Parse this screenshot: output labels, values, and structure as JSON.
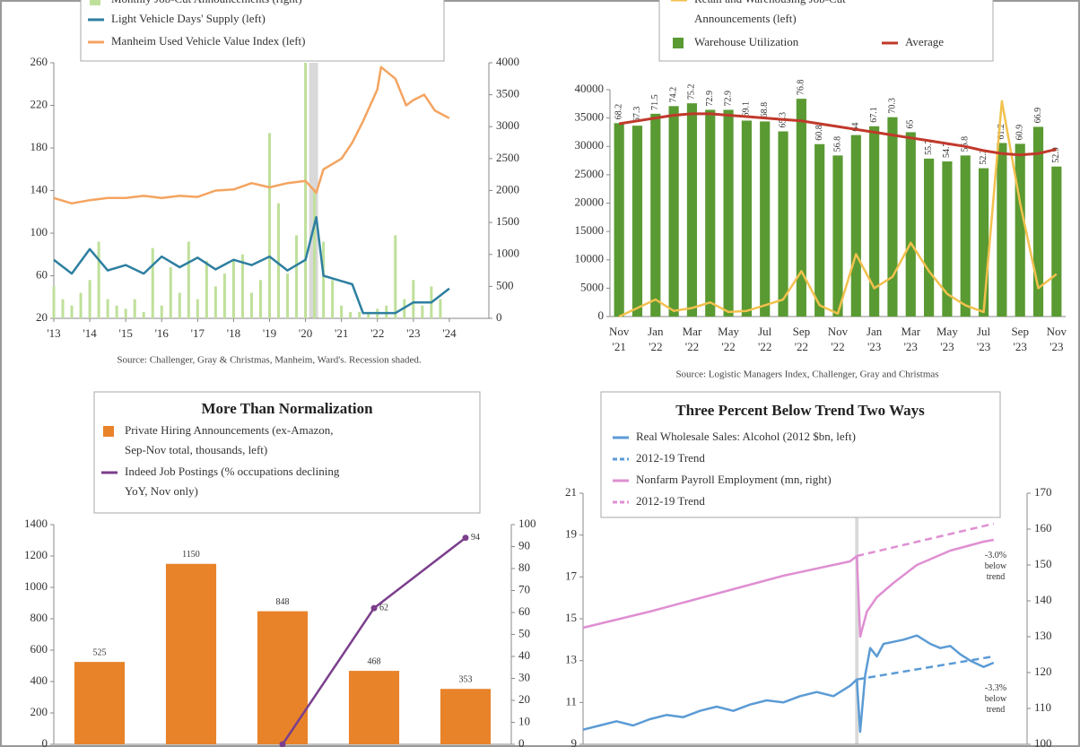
{
  "chart_data": [
    {
      "type": "combo",
      "source": "Source: Challenger, Gray & Christmas, Manheim, Ward's. Recession shaded.",
      "xlim": [
        2013,
        2025.1
      ],
      "xticks": [
        {
          "value": 2013,
          "label": "'13"
        },
        {
          "value": 2014,
          "label": "'14"
        },
        {
          "value": 2015,
          "label": "'15"
        },
        {
          "value": 2016,
          "label": "'16"
        },
        {
          "value": 2017,
          "label": "'17"
        },
        {
          "value": 2018,
          "label": "'18"
        },
        {
          "value": 2019,
          "label": "'19"
        },
        {
          "value": 2020,
          "label": "'20"
        },
        {
          "value": 2021,
          "label": "'21"
        },
        {
          "value": 2022,
          "label": "'22"
        },
        {
          "value": 2023,
          "label": "'23"
        },
        {
          "value": 2024,
          "label": "'24"
        }
      ],
      "ylim": [
        20,
        260
      ],
      "yticks": [
        20,
        60,
        100,
        140,
        180,
        220,
        260
      ],
      "y2lim": [
        0,
        4000
      ],
      "y2ticks": [
        0,
        500,
        1000,
        1500,
        2000,
        2500,
        3000,
        3500,
        4000
      ],
      "series": [
        {
          "name": "Monthly Job-Cut Announcements (right)",
          "type": "bar",
          "axis": "y2",
          "color": "#bfe09a",
          "x": [
            2013,
            2013.25,
            2013.5,
            2013.75,
            2014,
            2014.25,
            2014.5,
            2014.75,
            2015,
            2015.25,
            2015.5,
            2015.75,
            2016,
            2016.25,
            2016.5,
            2016.75,
            2017,
            2017.25,
            2017.5,
            2017.75,
            2018,
            2018.25,
            2018.5,
            2018.75,
            2019,
            2019.25,
            2019.5,
            2019.75,
            2020,
            2020.25,
            2020.5,
            2020.75,
            2021,
            2021.25,
            2021.5,
            2021.75,
            2022,
            2022.25,
            2022.5,
            2022.75,
            2023,
            2023.25,
            2023.5,
            2023.75
          ],
          "values": [
            500,
            300,
            200,
            400,
            600,
            1200,
            300,
            200,
            150,
            300,
            100,
            1100,
            200,
            800,
            400,
            1200,
            300,
            900,
            500,
            700,
            900,
            1000,
            400,
            600,
            2900,
            1800,
            700,
            1300,
            4000,
            2000,
            1200,
            600,
            200,
            100,
            100,
            100,
            150,
            200,
            1300,
            300,
            600,
            200,
            500,
            300
          ]
        },
        {
          "name": "Light Vehicle Days' Supply (left)",
          "type": "line",
          "color": "#2e7fa0",
          "x": [
            2013,
            2013.5,
            2014,
            2014.5,
            2015,
            2015.5,
            2016,
            2016.5,
            2017,
            2017.5,
            2018,
            2018.5,
            2019,
            2019.5,
            2020,
            2020.3,
            2020.5,
            2021,
            2021.3,
            2021.6,
            2022,
            2022.5,
            2023,
            2023.5,
            2024
          ],
          "values": [
            75,
            62,
            85,
            65,
            70,
            62,
            78,
            68,
            77,
            66,
            75,
            70,
            78,
            65,
            75,
            115,
            60,
            55,
            52,
            25,
            25,
            25,
            35,
            35,
            48
          ]
        },
        {
          "name": "Manheim Used Vehicle Value Index (left)",
          "type": "line",
          "color": "#f4a460",
          "x": [
            2013,
            2013.5,
            2014,
            2014.5,
            2015,
            2015.5,
            2016,
            2016.5,
            2017,
            2017.5,
            2018,
            2018.5,
            2019,
            2019.5,
            2020,
            2020.3,
            2020.5,
            2021,
            2021.3,
            2021.6,
            2022,
            2022.1,
            2022.5,
            2022.8,
            2023,
            2023.3,
            2023.6,
            2024
          ],
          "values": [
            133,
            128,
            131,
            133,
            133,
            135,
            133,
            135,
            134,
            140,
            141,
            147,
            143,
            147,
            149,
            138,
            160,
            170,
            185,
            205,
            235,
            256,
            245,
            220,
            225,
            230,
            215,
            208
          ]
        }
      ]
    },
    {
      "type": "combo",
      "source": "Source: Logistic Managers Index, Challenger, Gray and Christmas",
      "categories": [
        "Nov '21",
        null,
        "Jan '22",
        null,
        "Mar '22",
        null,
        "May '22",
        null,
        "Jul '22",
        null,
        "Sep '22",
        null,
        "Nov '22",
        null,
        "Jan '23",
        null,
        "Mar '23",
        null,
        "May '23",
        null,
        "Jul '23",
        null,
        "Sep '23",
        null,
        "Nov '23"
      ],
      "ylim": [
        0,
        40000
      ],
      "yticks": [
        0,
        5000,
        10000,
        15000,
        20000,
        25000,
        30000,
        35000,
        40000
      ],
      "y2lim": [
        0,
        80
      ],
      "series": [
        {
          "name": "Retail and Warehousing Job-Cut Announcements (left)",
          "type": "line",
          "color": "#f2c14e",
          "values": [
            0,
            1500,
            3000,
            1000,
            1500,
            2500,
            800,
            1000,
            2000,
            3000,
            8000,
            2000,
            500,
            11000,
            5000,
            7000,
            13000,
            8000,
            4000,
            2000,
            800,
            38000,
            20000,
            5000,
            7500
          ]
        },
        {
          "name": "Warehouse Utilization",
          "type": "bar",
          "axis": "y2",
          "color": "#5a9a32",
          "data_labels": true,
          "values": [
            68.2,
            67.3,
            71.5,
            74.2,
            75.2,
            72.9,
            72.9,
            69.1,
            68.8,
            65.3,
            76.8,
            60.8,
            56.8,
            64.0,
            67.1,
            70.3,
            65.0,
            55.7,
            54.7,
            56.8,
            52.3,
            61.2,
            60.9,
            66.9,
            52.9
          ]
        },
        {
          "name": "Average",
          "type": "line",
          "axis": "y2",
          "color": "#c0392b",
          "width": 3,
          "values": [
            68,
            69,
            70,
            71,
            71.5,
            71.5,
            71,
            70.5,
            70,
            69.5,
            69,
            68,
            67,
            66,
            65,
            64,
            63,
            62,
            61,
            60,
            58.5,
            57.5,
            57,
            57.5,
            59
          ]
        }
      ]
    },
    {
      "type": "combo",
      "title": "More Than Normalization",
      "categories": [
        null,
        null,
        null,
        null,
        null
      ],
      "ylim": [
        0,
        1400
      ],
      "yticks": [
        0,
        200,
        400,
        600,
        800,
        1000,
        1200,
        1400
      ],
      "y2lim": [
        0,
        100
      ],
      "y2ticks": [
        0,
        10,
        20,
        30,
        40,
        50,
        60,
        70,
        80,
        90,
        100
      ],
      "series": [
        {
          "name": "Private Hiring Announcements (ex-Amazon, Sep-Nov total, thousands, left)",
          "type": "bar",
          "color": "#e8832a",
          "data_labels": true,
          "values": [
            525,
            1150,
            848,
            468,
            353
          ]
        },
        {
          "name": "Indeed Job Postings (% occupations declining YoY, Nov only)",
          "type": "line",
          "axis": "y2",
          "color": "#7b3f8c",
          "markers": true,
          "values": [
            null,
            null,
            0,
            62,
            94
          ],
          "value_labels": [
            null,
            null,
            null,
            "62",
            "94"
          ]
        }
      ]
    },
    {
      "type": "line",
      "title": "Three Percent Below Trend Two Ways",
      "annotations": [
        "-3.0% below trend",
        "-3.3% below trend"
      ],
      "xlim": [
        2012,
        2025.3
      ],
      "ylim": [
        9,
        21
      ],
      "yticks": [
        9,
        11,
        13,
        15,
        17,
        19,
        21
      ],
      "y2lim": [
        100,
        170
      ],
      "y2ticks": [
        100,
        110,
        120,
        130,
        140,
        150,
        160,
        170
      ],
      "series": [
        {
          "name": "Real Wholesale Sales: Alcohol (2012 $bn, left)",
          "color": "#5b9bd5",
          "x": [
            2012,
            2012.5,
            2013,
            2013.5,
            2014,
            2014.5,
            2015,
            2015.5,
            2016,
            2016.5,
            2017,
            2017.5,
            2018,
            2018.5,
            2019,
            2019.5,
            2020,
            2020.2,
            2020.3,
            2020.45,
            2020.6,
            2020.8,
            2021,
            2021.3,
            2021.6,
            2022,
            2022.4,
            2022.7,
            2023,
            2023.3,
            2023.6,
            2024,
            2024.3
          ],
          "values": [
            9.7,
            9.9,
            10.1,
            9.9,
            10.2,
            10.4,
            10.3,
            10.6,
            10.8,
            10.6,
            10.9,
            11.1,
            11,
            11.3,
            11.5,
            11.3,
            11.8,
            12.1,
            9.6,
            12.3,
            13.6,
            13.2,
            13.8,
            13.9,
            14,
            14.2,
            13.8,
            13.6,
            13.7,
            13.3,
            13,
            12.7,
            12.9
          ]
        },
        {
          "name": "2012-19 Trend",
          "color": "#5b9bd5",
          "dash": true,
          "x": [
            2020.2,
            2024.3
          ],
          "values": [
            12.1,
            13.2
          ]
        },
        {
          "name": "Nonfarm Payroll Employment (mn, right)",
          "color": "#df8fd2",
          "axis": "y2",
          "x": [
            2012,
            2014,
            2016,
            2018,
            2020,
            2020.2,
            2020.3,
            2020.5,
            2020.8,
            2021.3,
            2022,
            2023,
            2024,
            2024.3
          ],
          "values": [
            132.5,
            137,
            142,
            147,
            151,
            152.5,
            130,
            137,
            141,
            145,
            150,
            154,
            156.5,
            157
          ]
        },
        {
          "name": "2012-19 Trend",
          "color": "#df8fd2",
          "dash": true,
          "axis": "y2",
          "x": [
            2020.2,
            2024.3
          ],
          "values": [
            152.5,
            161.5
          ]
        }
      ]
    }
  ]
}
